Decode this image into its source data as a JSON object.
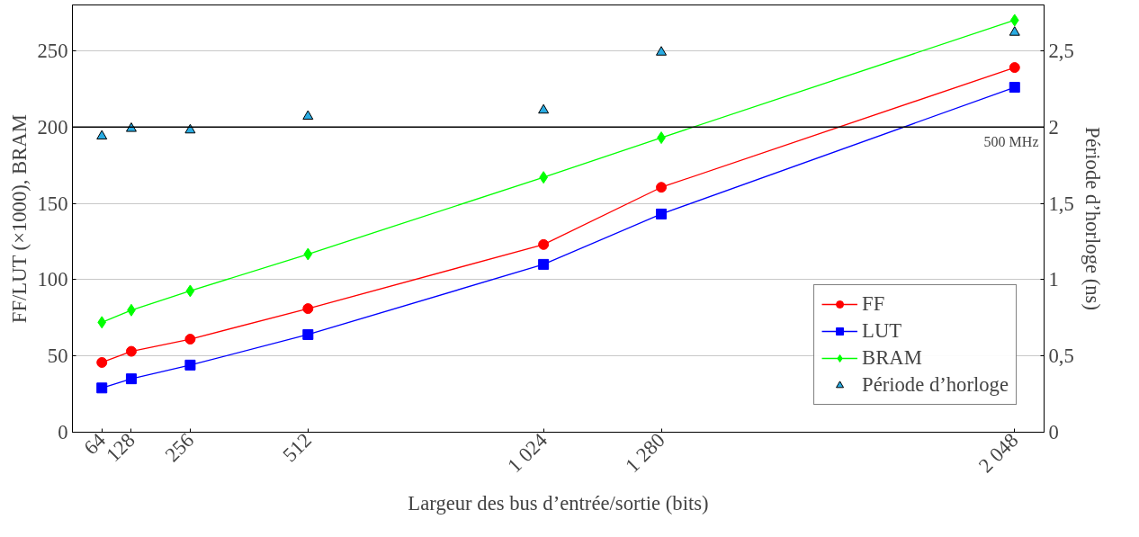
{
  "chart_data": {
    "type": "line",
    "xlabel": "Largeur des bus d’entrée/sortie (bits)",
    "ylabel": "FF/LUT (×1000), BRAM",
    "y2label": "Période d’horloge (ns)",
    "x": [
      64,
      128,
      256,
      512,
      1024,
      1280,
      2048
    ],
    "xlim": [
      0,
      2112
    ],
    "xticks": [
      64,
      128,
      256,
      512,
      {
        "value": 1024,
        "label": "1 024"
      },
      {
        "value": 1280,
        "label": "1 280"
      },
      {
        "value": 2048,
        "label": "2 048"
      }
    ],
    "ylim": [
      0,
      280
    ],
    "yticks": [
      0,
      50,
      100,
      150,
      200,
      250
    ],
    "y2lim": [
      0,
      2.8
    ],
    "y2ticks": [
      0,
      {
        "value": 0.5,
        "label": "0,5"
      },
      1,
      {
        "value": 1.5,
        "label": "1,5"
      },
      2,
      {
        "value": 2.5,
        "label": "2,5"
      }
    ],
    "grid": "y",
    "legend": "bottom right",
    "ref_lines": [
      {
        "axis": "y",
        "value": 200,
        "label": "500 MHz",
        "color": "#000000"
      }
    ],
    "series": [
      {
        "name": "FF",
        "color": "#ff0000",
        "marker": "circle",
        "values": [
          45.7,
          53,
          61,
          81,
          123,
          160.5,
          239
        ]
      },
      {
        "name": "LUT",
        "color": "#0000ff",
        "marker": "square",
        "values": [
          29,
          35,
          44,
          64,
          110,
          143,
          226
        ]
      },
      {
        "name": "BRAM",
        "color": "#00ff00",
        "marker": "diamond",
        "values": [
          72,
          80,
          92.6,
          116.7,
          167,
          193,
          270
        ]
      },
      {
        "name": "Période d’horloge",
        "type": "scatter",
        "axis": "y2",
        "color": "#29abe2",
        "marker": "triangle",
        "values": [
          1.94,
          1.99,
          1.98,
          2.07,
          2.11,
          2.49,
          2.62
        ]
      }
    ]
  }
}
